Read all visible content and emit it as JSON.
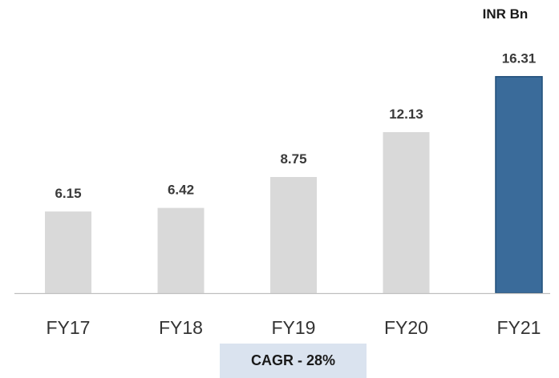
{
  "unit_label": "INR Bn",
  "cagr_label": "CAGR - 28%",
  "chart_data": {
    "type": "bar",
    "categories": [
      "FY17",
      "FY18",
      "FY19",
      "FY20",
      "FY21"
    ],
    "values": [
      6.15,
      6.42,
      8.75,
      12.13,
      16.31
    ],
    "value_labels": [
      "6.15",
      "6.42",
      "8.75",
      "12.13",
      "16.31"
    ],
    "title": "",
    "xlabel": "",
    "ylabel": "",
    "ylim": [
      0,
      17.5
    ],
    "grid": false,
    "legend": "none",
    "colors": {
      "default_bar": "#d9d9d9",
      "highlight_bar": "#3a6b9a",
      "highlight_bar_border": "#1f4e79",
      "axis": "#bfbfbf"
    },
    "highlight_index": 4
  }
}
